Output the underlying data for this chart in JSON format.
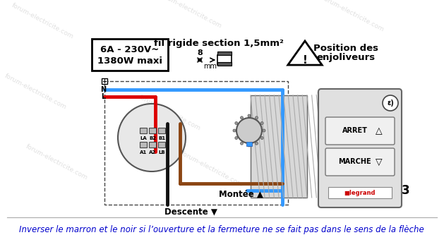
{
  "bg_color": "#ffffff",
  "box_text_line1": "6A - 230V~",
  "box_text_line2": "1380W maxi",
  "header_text": "fil rigide section 1,5mm²",
  "mm_label": "8",
  "warning_text1": "Position des",
  "warning_text2": "enjoliveurs",
  "montee_label": "Montée ▲",
  "descente_label": "Descente ▼",
  "bottom_text": "Inverser le marron et le noir si l’ouverture et la fermeture ne se fait pas dans le sens de la flèche",
  "bottom_text_color": "#0000cc",
  "arret_label": "ARRET",
  "marche_label": "MARCHE",
  "number_3": "3",
  "wire_blue": "#3399ff",
  "wire_red": "#dd0000",
  "wire_brown": "#8B4513",
  "wire_black": "#111111",
  "wm_color": "#c8c8c8",
  "wm_alpha": 0.55
}
